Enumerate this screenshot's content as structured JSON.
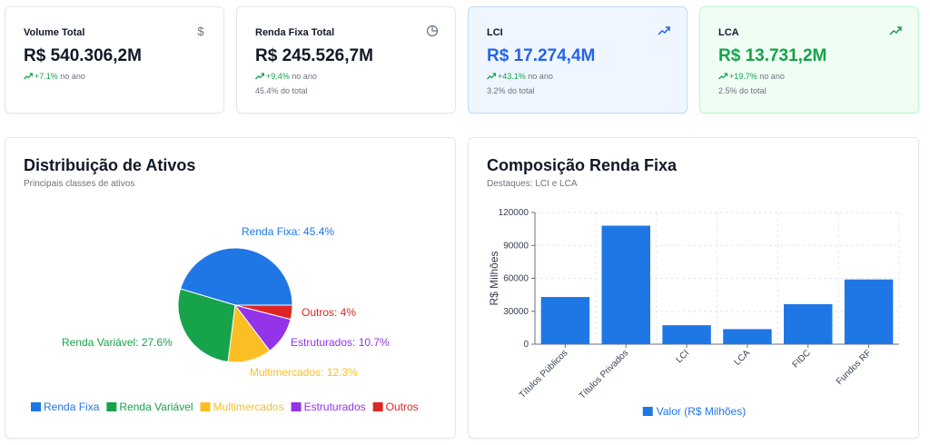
{
  "stats": [
    {
      "label": "Volume Total",
      "value": "R$ 540.306,2M",
      "change": "+7.1%",
      "change_suffix": "no ano",
      "icon": "dollar-icon"
    },
    {
      "label": "Renda Fixa Total",
      "value": "R$ 245.526,7M",
      "change": "+9.4%",
      "change_suffix": "no ano",
      "sub": "45.4% do total",
      "icon": "pie-chart-icon"
    },
    {
      "label": "LCI",
      "value": "R$ 17.274,4M",
      "change": "+43.1%",
      "change_suffix": "no ano",
      "sub": "3.2% do total",
      "icon": "trending-up-icon",
      "accent": "#2563eb"
    },
    {
      "label": "LCA",
      "value": "R$ 13.731,2M",
      "change": "+19.7%",
      "change_suffix": "no ano",
      "sub": "2.5% do total",
      "icon": "trending-up-icon",
      "accent": "#16a34a"
    }
  ],
  "distribution": {
    "title": "Distribuição de Ativos",
    "subtitle": "Principais classes de ativos"
  },
  "composition": {
    "title": "Composição Renda Fixa",
    "subtitle": "Destaques: LCI e LCA"
  },
  "chart_data": [
    {
      "type": "pie",
      "labels": [
        "Renda Fixa",
        "Renda Variável",
        "Multimercados",
        "Estruturados",
        "Outros"
      ],
      "values": [
        45.4,
        27.6,
        12.3,
        10.7,
        4
      ],
      "slice_labels": [
        "Renda Fixa: 45.4%",
        "Renda Variável: 27.6%",
        "Multimercados: 12.3%",
        "Estruturados: 10.7%",
        "Outros: 4%"
      ],
      "colors": [
        "#1f77e6",
        "#16a34a",
        "#fbbf24",
        "#9333ea",
        "#dc2626"
      ],
      "legend_position": "bottom"
    },
    {
      "type": "bar",
      "categories": [
        "Títulos Públicos",
        "Títulos Privados",
        "LCI",
        "LCA",
        "FIDC",
        "Fundos RF"
      ],
      "series": [
        {
          "name": "Valor (R$ Milhões)",
          "values": [
            43000,
            108000,
            17274.4,
            13731.2,
            36500,
            59000
          ]
        }
      ],
      "ylabel": "R$ Milhões",
      "ylim": [
        0,
        120000
      ],
      "yticks": [
        "0",
        "30000",
        "60000",
        "90000",
        "120000"
      ],
      "grid": true,
      "color": "#1f77e6",
      "legend_position": "bottom"
    }
  ]
}
